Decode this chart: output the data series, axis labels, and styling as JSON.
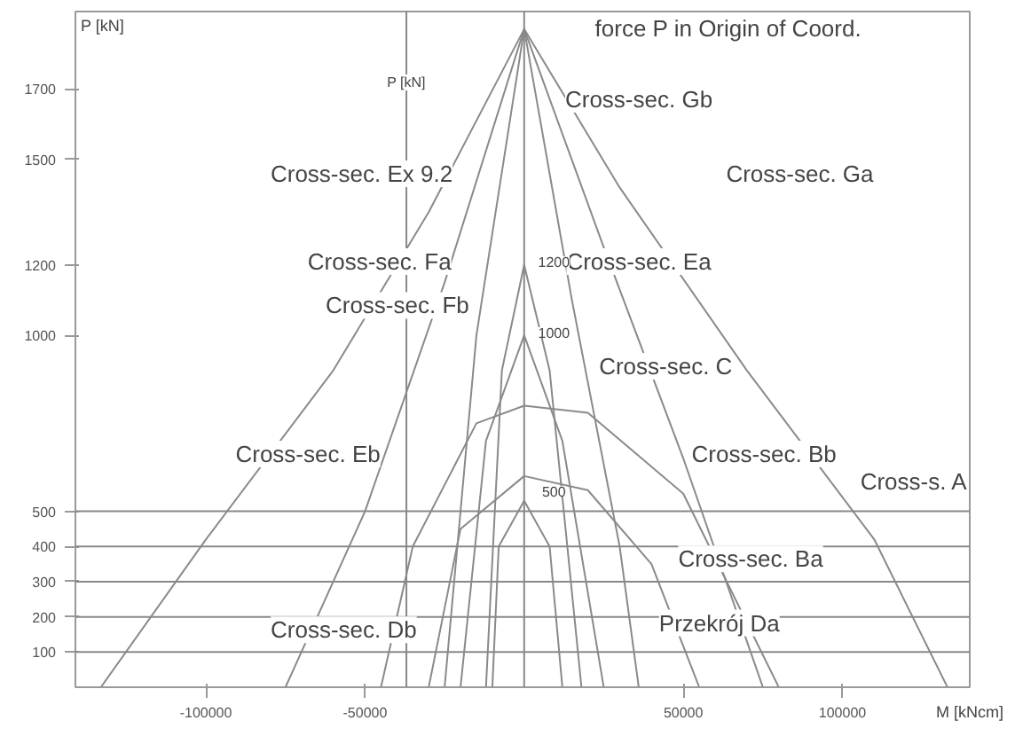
{
  "chart_data": {
    "type": "line",
    "xlabel": "M [kNcm]",
    "ylabel": "P [kN]",
    "xlim": [
      -141000,
      140000
    ],
    "ylim": [
      0,
      1920
    ],
    "xticks": [
      {
        "value": -100000,
        "label": "-100000"
      },
      {
        "value": -50000,
        "label": "-50000"
      },
      {
        "value": 50000,
        "label": "50000"
      },
      {
        "value": 100000,
        "label": "100000"
      }
    ],
    "yticks": [
      100,
      200,
      300,
      400,
      500,
      1000,
      1200,
      1500,
      1700
    ],
    "grid": false,
    "marker": "none",
    "line_style": "solid",
    "series": [
      {
        "color": "#8a8a8a",
        "x": [
          -133000,
          -100000,
          -60000,
          -30000,
          0,
          30000,
          70000,
          110000,
          133000
        ],
        "values": [
          0,
          420,
          900,
          1350,
          1870,
          1420,
          900,
          420,
          0
        ]
      },
      {
        "color": "#8a8a8a",
        "x": [
          -75000,
          -50000,
          -25000,
          0,
          25000,
          50000,
          75000
        ],
        "values": [
          0,
          500,
          1150,
          1870,
          1250,
          650,
          0
        ]
      },
      {
        "color": "#8a8a8a",
        "x": [
          -45000,
          -35000,
          -15000,
          0,
          20000,
          50000,
          80000
        ],
        "values": [
          0,
          400,
          750,
          800,
          780,
          550,
          0
        ]
      },
      {
        "color": "#8a8a8a",
        "x": [
          -30000,
          -20000,
          0,
          20000,
          40000,
          55000
        ],
        "values": [
          0,
          450,
          600,
          560,
          350,
          0
        ]
      },
      {
        "color": "#8a8a8a",
        "x": [
          -20000,
          -12000,
          0,
          12000,
          25000
        ],
        "values": [
          0,
          700,
          1000,
          700,
          0
        ]
      },
      {
        "color": "#8a8a8a",
        "x": [
          -12000,
          -7000,
          0,
          8000,
          18000
        ],
        "values": [
          0,
          900,
          1200,
          900,
          0
        ]
      },
      {
        "color": "#8a8a8a",
        "x": [
          -10000,
          -8000,
          0,
          8000,
          12000
        ],
        "values": [
          0,
          400,
          530,
          400,
          0
        ]
      },
      {
        "color": "#8a8a8a",
        "x": [
          -25000,
          -15000,
          0,
          15000,
          30000,
          36000
        ],
        "values": [
          0,
          1000,
          1870,
          1100,
          400,
          0
        ]
      }
    ],
    "ref_lines": [
      {
        "axis": "y",
        "value": 100
      },
      {
        "axis": "y",
        "value": 200
      },
      {
        "axis": "y",
        "value": 300
      },
      {
        "axis": "y",
        "value": 400
      },
      {
        "axis": "y",
        "value": 500
      },
      {
        "axis": "x",
        "value": 0
      },
      {
        "axis": "x",
        "value": -37000
      }
    ],
    "annotations": [
      "force P in Origin of Coord.",
      "Cross-sec. Gb",
      "Cross-sec. Ex 9.2",
      "Cross-sec. Ga",
      "Cross-sec. Fa",
      "Cross-sec. Ea",
      "Cross-sec. Fb",
      "Cross-sec. C",
      "Cross-sec. Eb",
      "Cross-sec. Bb",
      "Cross-s. A",
      "Cross-sec. Ba",
      "Przekrój Da",
      "Cross-sec. Db",
      "P [kN]",
      "1200",
      "1000",
      "500"
    ]
  }
}
